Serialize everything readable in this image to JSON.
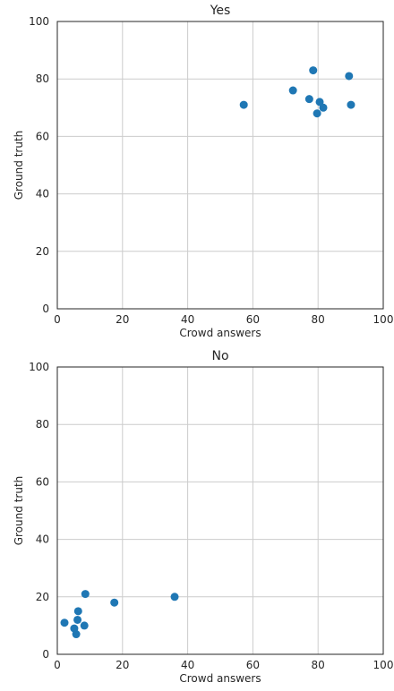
{
  "chart_data": [
    {
      "type": "scatter",
      "title": "Yes",
      "xlabel": "Crowd answers",
      "ylabel": "Ground truth",
      "xlim": [
        0,
        100
      ],
      "ylim": [
        0,
        100
      ],
      "xticks": [
        "0",
        "20",
        "40",
        "60",
        "80",
        "100"
      ],
      "yticks": [
        "0",
        "20",
        "40",
        "60",
        "80",
        "100"
      ],
      "grid": true,
      "points": [
        {
          "x": 57.2,
          "y": 71
        },
        {
          "x": 72.3,
          "y": 76
        },
        {
          "x": 77.3,
          "y": 73
        },
        {
          "x": 78.5,
          "y": 83
        },
        {
          "x": 79.7,
          "y": 68
        },
        {
          "x": 80.5,
          "y": 72
        },
        {
          "x": 81.6,
          "y": 70
        },
        {
          "x": 89.5,
          "y": 81
        },
        {
          "x": 90.1,
          "y": 71
        }
      ],
      "color": "#1f77b4"
    },
    {
      "type": "scatter",
      "title": "No",
      "xlabel": "Crowd answers",
      "ylabel": "Ground truth",
      "xlim": [
        0,
        100
      ],
      "ylim": [
        0,
        100
      ],
      "xticks": [
        "0",
        "20",
        "40",
        "60",
        "80",
        "100"
      ],
      "yticks": [
        "0",
        "20",
        "40",
        "60",
        "80",
        "100"
      ],
      "grid": true,
      "points": [
        {
          "x": 2.2,
          "y": 11
        },
        {
          "x": 5.2,
          "y": 9
        },
        {
          "x": 5.8,
          "y": 7
        },
        {
          "x": 6.2,
          "y": 12
        },
        {
          "x": 6.4,
          "y": 15
        },
        {
          "x": 8.3,
          "y": 10
        },
        {
          "x": 8.6,
          "y": 21
        },
        {
          "x": 17.5,
          "y": 18
        },
        {
          "x": 36.0,
          "y": 20
        }
      ],
      "color": "#1f77b4"
    }
  ]
}
